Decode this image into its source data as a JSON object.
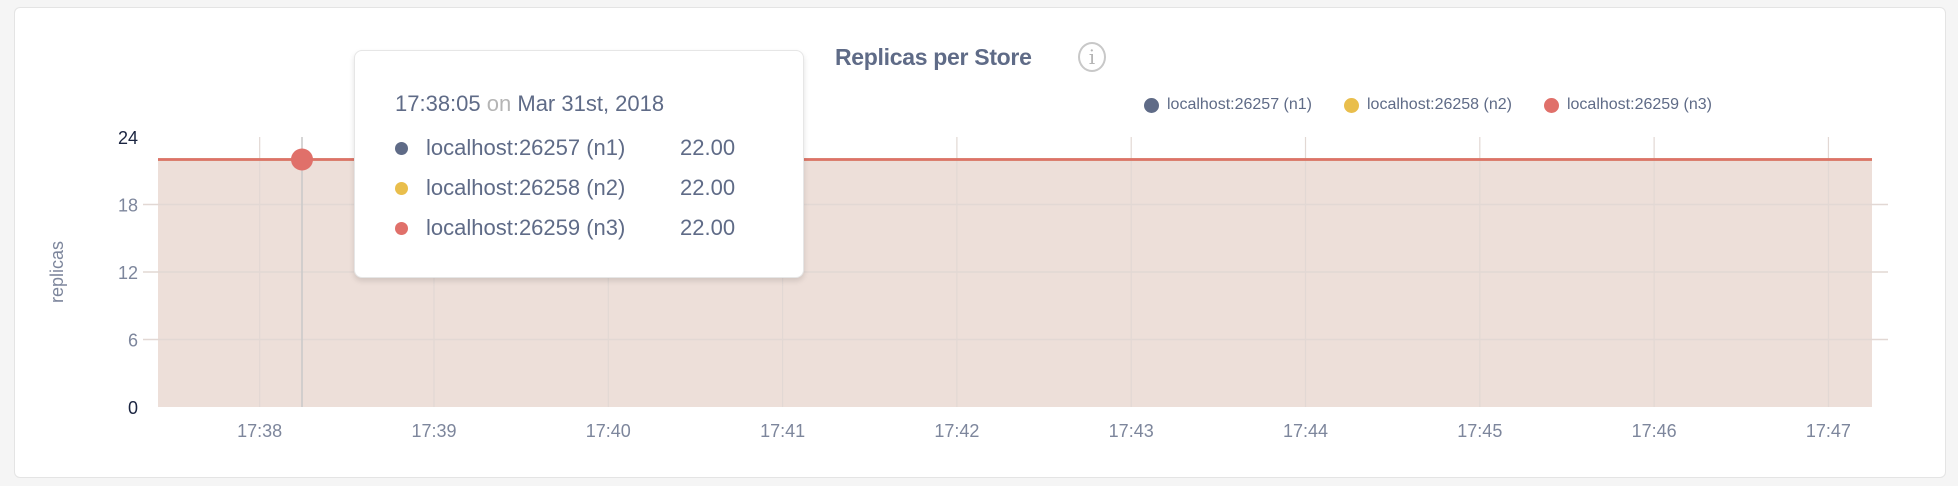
{
  "colors": {
    "n1": "#5f6b87",
    "n2": "#e9be4c",
    "n3": "#e0706a",
    "fill": "#eddfd9",
    "grid": "#e2d8d4"
  },
  "header": {
    "title": "Replicas per Store",
    "info_icon": "info-icon"
  },
  "tooltip": {
    "time": "17:38:05",
    "on": "on",
    "date": "Mar 31st, 2018",
    "rows": [
      {
        "label": "localhost:26257 (n1)",
        "value": "22.00",
        "color": "#5f6b87"
      },
      {
        "label": "localhost:26258 (n2)",
        "value": "22.00",
        "color": "#e9be4c"
      },
      {
        "label": "localhost:26259 (n3)",
        "value": "22.00",
        "color": "#e0706a"
      }
    ]
  },
  "chart_data": {
    "type": "area",
    "title": "Replicas per Store",
    "xlabel": "",
    "ylabel": "replicas",
    "ylim": [
      0,
      24
    ],
    "yticks": [
      "0",
      "6",
      "12",
      "18",
      "24"
    ],
    "xticks": [
      "17:38",
      "17:39",
      "17:40",
      "17:41",
      "17:42",
      "17:43",
      "17:44",
      "17:45",
      "17:46",
      "17:47"
    ],
    "xlim": [
      "17:37:25",
      "17:47:15"
    ],
    "grid": true,
    "legend": "top-right",
    "hover_time": "17:38:05",
    "x": [
      "17:37:25",
      "17:38:00",
      "17:39:00",
      "17:40:00",
      "17:41:00",
      "17:42:00",
      "17:43:00",
      "17:44:00",
      "17:45:00",
      "17:46:00",
      "17:47:00",
      "17:47:15"
    ],
    "series": [
      {
        "name": "localhost:26257 (n1)",
        "color": "#5f6b87",
        "values": [
          22,
          22,
          22,
          22,
          22,
          22,
          22,
          22,
          22,
          22,
          22,
          22
        ]
      },
      {
        "name": "localhost:26258 (n2)",
        "color": "#e9be4c",
        "values": [
          22,
          22,
          22,
          22,
          22,
          22,
          22,
          22,
          22,
          22,
          22,
          22
        ]
      },
      {
        "name": "localhost:26259 (n3)",
        "color": "#e0706a",
        "values": [
          22,
          22,
          22,
          22,
          22,
          22,
          22,
          22,
          22,
          22,
          22,
          22
        ]
      }
    ]
  }
}
